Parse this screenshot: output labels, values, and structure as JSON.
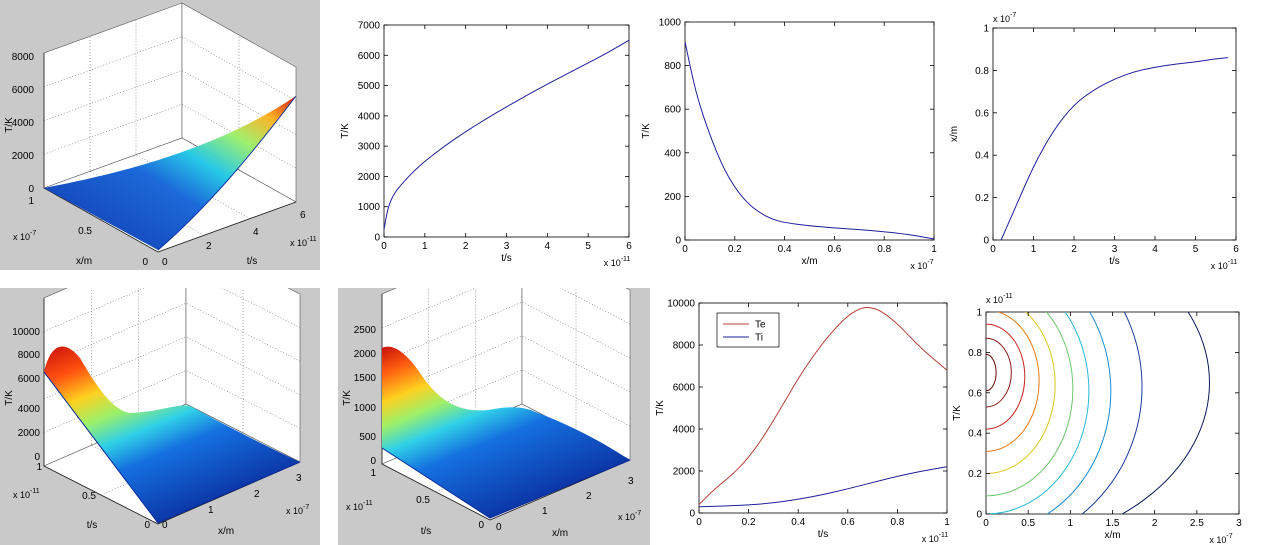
{
  "chart_data": [
    {
      "id": "p1",
      "type": "surface3d",
      "xlabel": "t/s",
      "ylabel": "x/m",
      "zlabel": "T/K",
      "x_ticks": [
        "0",
        "2",
        "4",
        "6"
      ],
      "x_multiplier": "x 10",
      "x_exp": "-11",
      "y_ticks": [
        "0",
        "0.5",
        "1"
      ],
      "y_multiplier": "x 10",
      "y_exp": "-7",
      "z_ticks": [
        "0",
        "2000",
        "4000",
        "6000",
        "8000"
      ],
      "xlim": [
        0,
        6e-11
      ],
      "ylim": [
        0,
        1e-07
      ],
      "zlim": [
        0,
        8000
      ],
      "surface": "T rises with t at x=0 to about 6500 K and decays rapidly with x"
    },
    {
      "id": "p2",
      "type": "line",
      "xlabel": "t/s",
      "ylabel": "T/K",
      "x_ticks": [
        "0",
        "1",
        "2",
        "3",
        "4",
        "5",
        "6"
      ],
      "x_multiplier": "x 10",
      "x_exp": "-11",
      "y_ticks": [
        "0",
        "1000",
        "2000",
        "3000",
        "4000",
        "5000",
        "6000",
        "7000"
      ],
      "xlim": [
        0,
        6
      ],
      "ylim": [
        0,
        7000
      ],
      "series": [
        {
          "color": "#1f1f9a",
          "x": [
            0,
            0.1,
            0.25,
            0.5,
            0.75,
            1,
            1.5,
            2,
            2.5,
            3,
            3.5,
            4,
            4.5,
            5,
            5.5,
            6
          ],
          "y": [
            250,
            1000,
            1450,
            1850,
            2200,
            2500,
            3020,
            3480,
            3900,
            4300,
            4680,
            5050,
            5400,
            5750,
            6100,
            6500
          ]
        }
      ]
    },
    {
      "id": "p3",
      "type": "line",
      "xlabel": "x/m",
      "ylabel": "T/K",
      "x_ticks": [
        "0",
        "0.2",
        "0.4",
        "0.6",
        "0.8",
        "1"
      ],
      "x_multiplier": "x 10",
      "x_exp": "-7",
      "y_ticks": [
        "0",
        "200",
        "400",
        "600",
        "800",
        "1000"
      ],
      "xlim": [
        0,
        1
      ],
      "ylim": [
        0,
        1000
      ],
      "series": [
        {
          "color": "#1f1f9a",
          "x": [
            0,
            0.02,
            0.05,
            0.1,
            0.15,
            0.2,
            0.25,
            0.3,
            0.35,
            0.4,
            0.5,
            0.6,
            0.7,
            0.8,
            0.9,
            0.95,
            1
          ],
          "y": [
            910,
            800,
            650,
            480,
            340,
            240,
            170,
            125,
            95,
            80,
            65,
            55,
            48,
            38,
            25,
            15,
            5
          ]
        }
      ]
    },
    {
      "id": "p4",
      "type": "line",
      "xlabel": "t/s",
      "ylabel": "x/m",
      "x_ticks": [
        "0",
        "1",
        "2",
        "3",
        "4",
        "5",
        "6"
      ],
      "x_multiplier": "x 10",
      "x_exp": "-11",
      "y_ticks": [
        "0",
        "0.2",
        "0.4",
        "0.6",
        "0.8",
        "1"
      ],
      "y_multiplier": "x 10",
      "y_exp": "-7",
      "xlim": [
        0,
        6
      ],
      "ylim": [
        0,
        1
      ],
      "series": [
        {
          "color": "#1f1f9a",
          "x": [
            0.2,
            0.5,
            1,
            1.5,
            2,
            2.5,
            3,
            3.5,
            4,
            4.5,
            5,
            5.5,
            5.8
          ],
          "y": [
            0,
            0.13,
            0.35,
            0.52,
            0.64,
            0.71,
            0.76,
            0.795,
            0.815,
            0.83,
            0.84,
            0.855,
            0.86
          ]
        }
      ]
    },
    {
      "id": "p5",
      "type": "surface3d",
      "xlabel": "x/m",
      "ylabel": "t/s",
      "zlabel": "T/K",
      "x_ticks": [
        "0",
        "1",
        "2",
        "3"
      ],
      "x_multiplier": "x 10",
      "x_exp": "-7",
      "y_ticks": [
        "0",
        "0.5",
        "1"
      ],
      "y_multiplier": "x 10",
      "y_exp": "-11",
      "z_ticks": [
        "0",
        "2000",
        "4000",
        "6000",
        "8000",
        "10000"
      ],
      "xlim": [
        0,
        3e-07
      ],
      "ylim": [
        0,
        1e-11
      ],
      "zlim": [
        0,
        10000
      ],
      "surface": "electron temperature peaks near 9800 K at x=0, t≈0.7e-11 s"
    },
    {
      "id": "p6",
      "type": "surface3d",
      "xlabel": "x/m",
      "ylabel": "t/s",
      "zlabel": "T/K",
      "x_ticks": [
        "0",
        "1",
        "2",
        "3"
      ],
      "x_multiplier": "x 10",
      "x_exp": "-7",
      "y_ticks": [
        "0",
        "0.5",
        "1"
      ],
      "y_multiplier": "x 10",
      "y_exp": "-11",
      "z_ticks": [
        "0",
        "500",
        "1000",
        "1500",
        "2000",
        "2500"
      ],
      "xlim": [
        0,
        3e-07
      ],
      "ylim": [
        0,
        1e-11
      ],
      "zlim": [
        0,
        2500
      ],
      "surface": "ion temperature reaches about 2200 K at x=0, t=1e-11 s"
    },
    {
      "id": "p7",
      "type": "line",
      "xlabel": "t/s",
      "ylabel": "T/K",
      "x_ticks": [
        "0",
        "0.2",
        "0.4",
        "0.6",
        "0.8",
        "1"
      ],
      "x_multiplier": "x 10",
      "x_exp": "-11",
      "y_ticks": [
        "0",
        "2000",
        "4000",
        "6000",
        "8000",
        "10000"
      ],
      "xlim": [
        0,
        1
      ],
      "ylim": [
        0,
        10000
      ],
      "legend": "top-left",
      "series": [
        {
          "name": "Te",
          "color": "#b5403a",
          "x": [
            0,
            0.05,
            0.1,
            0.15,
            0.2,
            0.25,
            0.3,
            0.35,
            0.4,
            0.45,
            0.5,
            0.55,
            0.6,
            0.65,
            0.68,
            0.72,
            0.76,
            0.8,
            0.85,
            0.9,
            0.95,
            1
          ],
          "y": [
            400,
            1000,
            1500,
            2000,
            2650,
            3450,
            4400,
            5400,
            6400,
            7300,
            8100,
            8800,
            9400,
            9750,
            9800,
            9700,
            9400,
            9000,
            8400,
            7800,
            7300,
            6800
          ]
        },
        {
          "name": "Ti",
          "color": "#1f1f9a",
          "x": [
            0,
            0.1,
            0.2,
            0.3,
            0.4,
            0.5,
            0.6,
            0.7,
            0.8,
            0.9,
            1
          ],
          "y": [
            300,
            330,
            380,
            480,
            650,
            870,
            1150,
            1450,
            1750,
            2000,
            2200
          ]
        }
      ]
    },
    {
      "id": "p8",
      "type": "contour",
      "xlabel": "x/m",
      "ylabel": "T/K",
      "x_ticks": [
        "0",
        "0.5",
        "1",
        "1.5",
        "2",
        "2.5",
        "3"
      ],
      "x_multiplier": "x 10",
      "x_exp": "-7",
      "y_ticks": [
        "0",
        "0.2",
        "0.4",
        "0.6",
        "0.8",
        "1"
      ],
      "y_multiplier": "x 10",
      "y_exp": "-11",
      "xlim": [
        0,
        3
      ],
      "ylim": [
        0,
        1
      ],
      "center_y": 0.7,
      "levels": [
        {
          "rx": 0.12,
          "ry": 0.09,
          "y0": 0.7,
          "color": "#6b0a0a"
        },
        {
          "rx": 0.3,
          "ry": 0.17,
          "y0": 0.7,
          "color": "#8b1a1a"
        },
        {
          "rx": 0.46,
          "ry": 0.26,
          "y0": 0.68,
          "color": "#c8241e"
        },
        {
          "rx": 0.63,
          "ry": 0.35,
          "y0": 0.66,
          "color": "#e87a18"
        },
        {
          "rx": 0.82,
          "ry": 0.44,
          "y0": 0.64,
          "color": "#d8c81e"
        },
        {
          "rx": 1.03,
          "ry": 0.53,
          "y0": 0.62,
          "color": "#6cc86a"
        },
        {
          "rx": 1.22,
          "ry": 0.61,
          "y0": 0.61,
          "color": "#2ab8d6"
        },
        {
          "rx": 1.48,
          "ry": 0.7,
          "y0": 0.61,
          "color": "#1a8ad6"
        },
        {
          "rx": 1.85,
          "ry": 0.8,
          "y0": 0.63,
          "color": "#1a3a9a"
        },
        {
          "rx": 2.65,
          "ry": 0.82,
          "y0": 0.65,
          "color": "#0d1a5a"
        }
      ]
    }
  ]
}
